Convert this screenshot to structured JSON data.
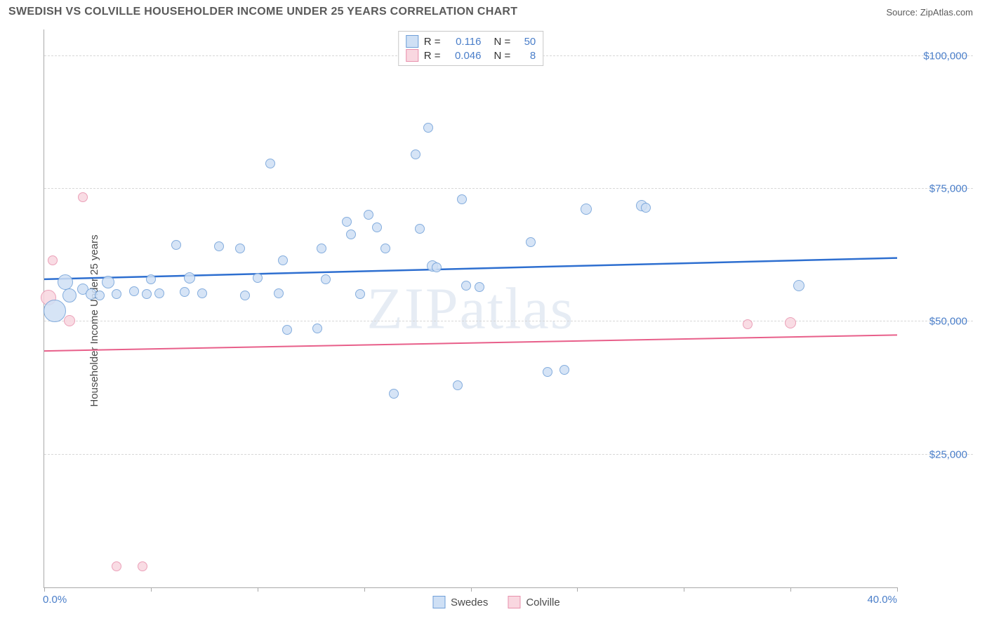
{
  "title": "SWEDISH VS COLVILLE HOUSEHOLDER INCOME UNDER 25 YEARS CORRELATION CHART",
  "source": "Source: ZipAtlas.com",
  "watermark": "ZIPatlas",
  "y_axis_label": "Householder Income Under 25 years",
  "chart": {
    "type": "scatter",
    "xlim": [
      0,
      40
    ],
    "ylim": [
      0,
      105000
    ],
    "x_ticks": [
      0,
      5,
      10,
      15,
      20,
      25,
      30,
      35,
      40
    ],
    "x_tick_labels_shown": {
      "0": "0.0%",
      "40": "40.0%"
    },
    "y_gridlines": [
      25000,
      50000,
      75000,
      100000
    ],
    "y_gridline_labels": [
      "$25,000",
      "$50,000",
      "$75,000",
      "$100,000"
    ],
    "grid_color": "#d8d8d8",
    "axis_color": "#aaaaaa",
    "label_color": "#4a7ec9",
    "background_color": "#ffffff",
    "label_fontsize": 15
  },
  "series": {
    "swedes": {
      "label": "Swedes",
      "fill": "#cfe0f5",
      "stroke": "#6f9fd8",
      "trend_color": "#2e6fd0",
      "trend_width": 2.5,
      "trend_start_y": 58000,
      "trend_end_y": 62000,
      "r_label": "R =",
      "r_value": "0.116",
      "n_label": "N =",
      "n_value": "50",
      "points": [
        {
          "x": 0.5,
          "y": 52000,
          "r": 16
        },
        {
          "x": 1.0,
          "y": 57500,
          "r": 11
        },
        {
          "x": 1.2,
          "y": 55000,
          "r": 10
        },
        {
          "x": 1.8,
          "y": 56200,
          "r": 8
        },
        {
          "x": 2.2,
          "y": 55200,
          "r": 8
        },
        {
          "x": 2.6,
          "y": 55000,
          "r": 7
        },
        {
          "x": 3.0,
          "y": 57400,
          "r": 9
        },
        {
          "x": 3.4,
          "y": 55200,
          "r": 7
        },
        {
          "x": 4.2,
          "y": 55800,
          "r": 7
        },
        {
          "x": 4.8,
          "y": 55200,
          "r": 7
        },
        {
          "x": 5.0,
          "y": 58000,
          "r": 7
        },
        {
          "x": 5.4,
          "y": 55400,
          "r": 7
        },
        {
          "x": 6.2,
          "y": 64500,
          "r": 7
        },
        {
          "x": 6.6,
          "y": 55600,
          "r": 7
        },
        {
          "x": 6.8,
          "y": 58200,
          "r": 8
        },
        {
          "x": 7.4,
          "y": 55400,
          "r": 7
        },
        {
          "x": 8.2,
          "y": 64200,
          "r": 7
        },
        {
          "x": 9.2,
          "y": 63800,
          "r": 7
        },
        {
          "x": 9.4,
          "y": 55000,
          "r": 7
        },
        {
          "x": 10.0,
          "y": 58200,
          "r": 7
        },
        {
          "x": 10.6,
          "y": 79800,
          "r": 7
        },
        {
          "x": 11.0,
          "y": 55400,
          "r": 7
        },
        {
          "x": 11.2,
          "y": 61500,
          "r": 7
        },
        {
          "x": 11.4,
          "y": 48500,
          "r": 7
        },
        {
          "x": 12.8,
          "y": 48700,
          "r": 7
        },
        {
          "x": 13.0,
          "y": 63800,
          "r": 7
        },
        {
          "x": 13.2,
          "y": 58000,
          "r": 7
        },
        {
          "x": 14.2,
          "y": 68800,
          "r": 7
        },
        {
          "x": 14.4,
          "y": 66500,
          "r": 7
        },
        {
          "x": 14.8,
          "y": 55200,
          "r": 7
        },
        {
          "x": 15.2,
          "y": 70200,
          "r": 7
        },
        {
          "x": 15.6,
          "y": 67800,
          "r": 7
        },
        {
          "x": 16.0,
          "y": 63800,
          "r": 7
        },
        {
          "x": 16.4,
          "y": 36500,
          "r": 7
        },
        {
          "x": 17.4,
          "y": 81500,
          "r": 7
        },
        {
          "x": 17.6,
          "y": 67500,
          "r": 7
        },
        {
          "x": 18.0,
          "y": 86500,
          "r": 7
        },
        {
          "x": 18.2,
          "y": 60500,
          "r": 8
        },
        {
          "x": 18.4,
          "y": 60200,
          "r": 7
        },
        {
          "x": 19.4,
          "y": 38000,
          "r": 7
        },
        {
          "x": 19.6,
          "y": 73000,
          "r": 7
        },
        {
          "x": 19.8,
          "y": 56800,
          "r": 7
        },
        {
          "x": 20.4,
          "y": 56500,
          "r": 7
        },
        {
          "x": 22.8,
          "y": 65000,
          "r": 7
        },
        {
          "x": 23.6,
          "y": 40500,
          "r": 7
        },
        {
          "x": 24.4,
          "y": 41000,
          "r": 7
        },
        {
          "x": 25.4,
          "y": 71200,
          "r": 8
        },
        {
          "x": 28.0,
          "y": 71800,
          "r": 8
        },
        {
          "x": 28.2,
          "y": 71500,
          "r": 7
        },
        {
          "x": 35.4,
          "y": 56800,
          "r": 8
        }
      ]
    },
    "colville": {
      "label": "Colville",
      "fill": "#f9d7e0",
      "stroke": "#e890ac",
      "trend_color": "#e85f8a",
      "trend_width": 2,
      "trend_start_y": 44500,
      "trend_end_y": 47500,
      "r_label": "R =",
      "r_value": "0.046",
      "n_label": "N =",
      "n_value": "8",
      "points": [
        {
          "x": 0.2,
          "y": 54500,
          "r": 11
        },
        {
          "x": 0.4,
          "y": 61500,
          "r": 7
        },
        {
          "x": 1.2,
          "y": 50200,
          "r": 8
        },
        {
          "x": 1.8,
          "y": 73500,
          "r": 7
        },
        {
          "x": 3.4,
          "y": 4000,
          "r": 7
        },
        {
          "x": 4.6,
          "y": 4000,
          "r": 7
        },
        {
          "x": 33.0,
          "y": 49500,
          "r": 7
        },
        {
          "x": 35.0,
          "y": 49800,
          "r": 8
        }
      ]
    }
  }
}
